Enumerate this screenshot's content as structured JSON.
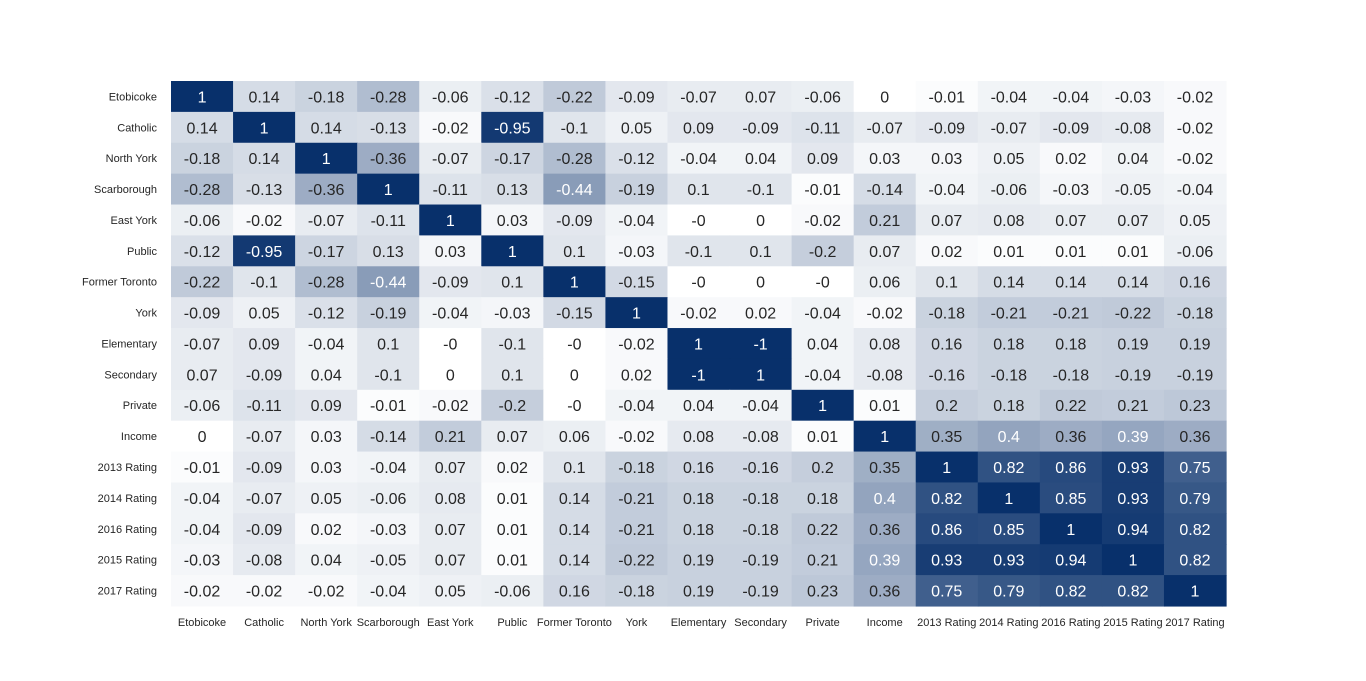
{
  "chart_data": {
    "type": "heatmap",
    "title": "",
    "xlabel": "",
    "ylabel": "",
    "labels": [
      "Etobicoke",
      "Catholic",
      "North York",
      "Scarborough",
      "East York",
      "Public",
      "Former Toronto",
      "York",
      "Elementary",
      "Secondary",
      "Private",
      "Income",
      "2013 Rating",
      "2014 Rating",
      "2016 Rating",
      "2015 Rating",
      "2017 Rating"
    ],
    "matrix": [
      [
        1,
        0.14,
        -0.18,
        -0.28,
        -0.06,
        -0.12,
        -0.22,
        -0.09,
        -0.07,
        0.07,
        -0.06,
        0,
        -0.01,
        -0.04,
        -0.04,
        -0.03,
        -0.02
      ],
      [
        0.14,
        1,
        0.14,
        -0.13,
        -0.02,
        -0.95,
        -0.1,
        0.05,
        0.09,
        -0.09,
        -0.11,
        -0.07,
        -0.09,
        -0.07,
        -0.09,
        -0.08,
        -0.02
      ],
      [
        -0.18,
        0.14,
        1,
        -0.36,
        -0.07,
        -0.17,
        -0.28,
        -0.12,
        -0.04,
        0.04,
        0.09,
        0.03,
        0.03,
        0.05,
        0.02,
        0.04,
        -0.02
      ],
      [
        -0.28,
        -0.13,
        -0.36,
        1,
        -0.11,
        0.13,
        -0.44,
        -0.19,
        0.1,
        -0.1,
        -0.01,
        -0.14,
        -0.04,
        -0.06,
        -0.03,
        -0.05,
        -0.04
      ],
      [
        -0.06,
        -0.02,
        -0.07,
        -0.11,
        1,
        0.03,
        -0.09,
        -0.04,
        "-0",
        0,
        -0.02,
        0.21,
        0.07,
        0.08,
        0.07,
        0.07,
        0.05
      ],
      [
        -0.12,
        -0.95,
        -0.17,
        0.13,
        0.03,
        1,
        0.1,
        -0.03,
        -0.1,
        0.1,
        -0.2,
        0.07,
        0.02,
        0.01,
        0.01,
        0.01,
        -0.06
      ],
      [
        -0.22,
        -0.1,
        -0.28,
        -0.44,
        -0.09,
        0.1,
        1,
        -0.15,
        "-0",
        0,
        "-0",
        0.06,
        0.1,
        0.14,
        0.14,
        0.14,
        0.16
      ],
      [
        -0.09,
        0.05,
        -0.12,
        -0.19,
        -0.04,
        -0.03,
        -0.15,
        1,
        -0.02,
        0.02,
        -0.04,
        -0.02,
        -0.18,
        -0.21,
        -0.21,
        -0.22,
        -0.18
      ],
      [
        -0.07,
        0.09,
        -0.04,
        0.1,
        "-0",
        -0.1,
        "-0",
        -0.02,
        1,
        -1,
        0.04,
        0.08,
        0.16,
        0.18,
        0.18,
        0.19,
        0.19
      ],
      [
        0.07,
        -0.09,
        0.04,
        -0.1,
        0,
        0.1,
        0,
        0.02,
        -1,
        1,
        -0.04,
        -0.08,
        -0.16,
        -0.18,
        -0.18,
        -0.19,
        -0.19
      ],
      [
        -0.06,
        -0.11,
        0.09,
        -0.01,
        -0.02,
        -0.2,
        "-0",
        -0.04,
        0.04,
        -0.04,
        1,
        0.01,
        0.2,
        0.18,
        0.22,
        0.21,
        0.23
      ],
      [
        0,
        -0.07,
        0.03,
        -0.14,
        0.21,
        0.07,
        0.06,
        -0.02,
        0.08,
        -0.08,
        0.01,
        1,
        0.35,
        0.4,
        0.36,
        0.39,
        0.36
      ],
      [
        -0.01,
        -0.09,
        0.03,
        -0.04,
        0.07,
        0.02,
        0.1,
        -0.18,
        0.16,
        -0.16,
        0.2,
        0.35,
        1,
        0.82,
        0.86,
        0.93,
        0.75
      ],
      [
        -0.04,
        -0.07,
        0.05,
        -0.06,
        0.08,
        0.01,
        0.14,
        -0.21,
        0.18,
        -0.18,
        0.18,
        0.4,
        0.82,
        1,
        0.85,
        0.93,
        0.79
      ],
      [
        -0.04,
        -0.09,
        0.02,
        -0.03,
        0.07,
        0.01,
        0.14,
        -0.21,
        0.18,
        -0.18,
        0.22,
        0.36,
        0.86,
        0.85,
        1,
        0.94,
        0.82
      ],
      [
        -0.03,
        -0.08,
        0.04,
        -0.05,
        0.07,
        0.01,
        0.14,
        -0.22,
        0.19,
        -0.19,
        0.21,
        0.39,
        0.93,
        0.93,
        0.94,
        1,
        0.82
      ],
      [
        -0.02,
        -0.02,
        -0.02,
        -0.04,
        0.05,
        -0.06,
        0.16,
        -0.18,
        0.19,
        -0.19,
        0.23,
        0.36,
        0.75,
        0.79,
        0.82,
        0.82,
        1
      ]
    ],
    "colors": {
      "low": "#ffffff",
      "high": "#08306b",
      "text_dark": "#262626",
      "text_light": "#ffffff"
    }
  }
}
